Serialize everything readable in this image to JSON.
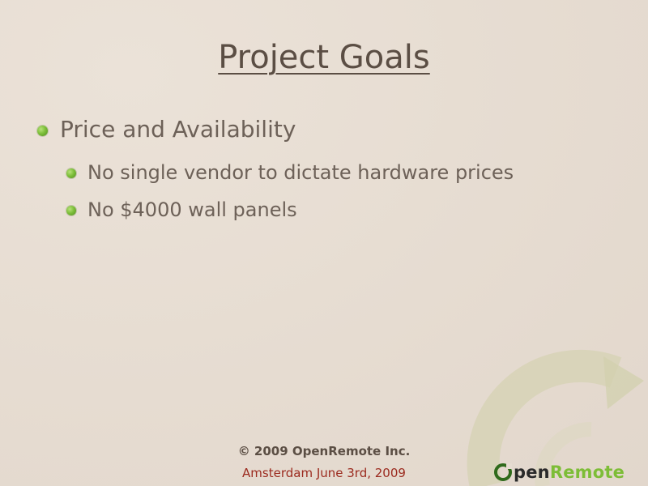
{
  "slide": {
    "title": "Project Goals",
    "bullets": [
      {
        "level": 1,
        "text": "Price and Availability"
      },
      {
        "level": 2,
        "text": "No single vendor to dictate hardware prices"
      },
      {
        "level": 2,
        "text": "No $4000 wall panels"
      }
    ]
  },
  "footer": {
    "copyright": "© 2009 OpenRemote Inc.",
    "event": "Amsterdam June 3rd, 2009"
  },
  "logo": {
    "text_dark": "pen",
    "text_green": "Remote"
  },
  "colors": {
    "background": "#e7ddd2",
    "title": "#5b4e44",
    "body_text": "#6d6158",
    "bullet_green": "#7ebf3a",
    "event_red": "#9b2a1e",
    "logo_green": "#7dbd37"
  }
}
